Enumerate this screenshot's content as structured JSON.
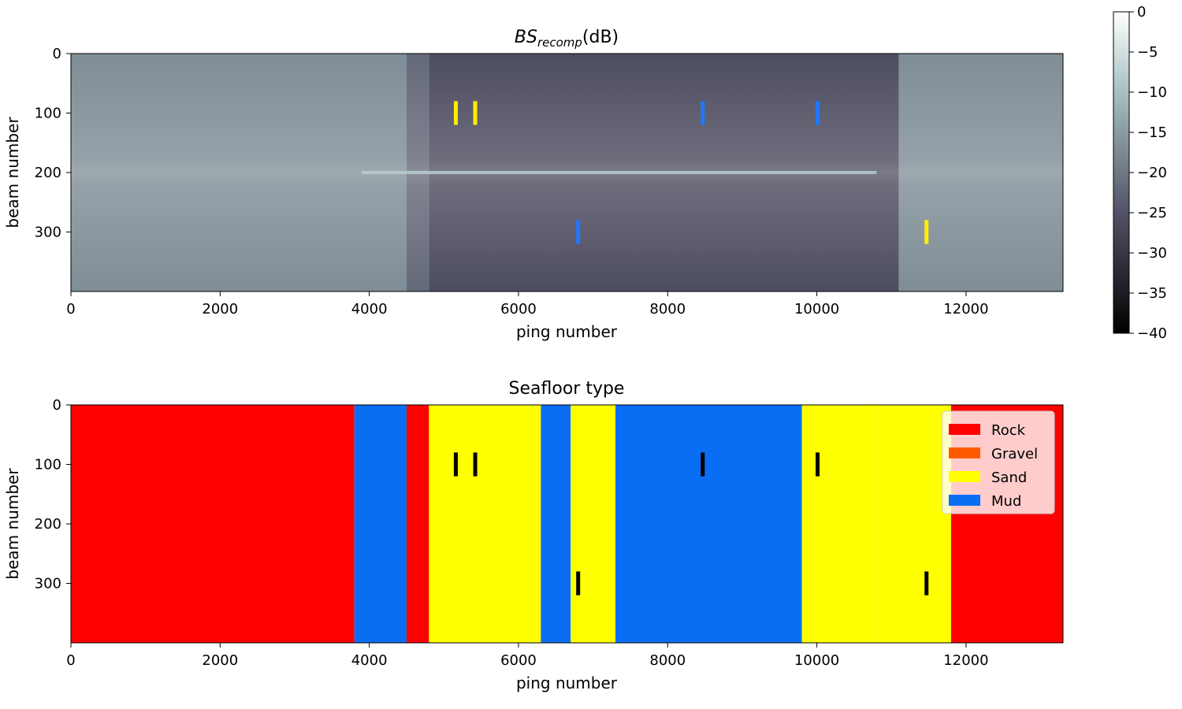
{
  "chart_data": [
    {
      "type": "heatmap",
      "title": "BS",
      "title_subscript": "recomp",
      "title_suffix": "(dB)",
      "xlabel": "ping number",
      "ylabel": "beam number",
      "xlim": [
        0,
        13300
      ],
      "ylim": [
        400,
        0
      ],
      "xticks": [
        0,
        2000,
        4000,
        6000,
        8000,
        10000,
        12000
      ],
      "yticks": [
        0,
        100,
        200,
        300
      ],
      "colorbar": {
        "colormap": "bone",
        "range": [
          -40,
          0
        ],
        "ticks": [
          0,
          -5,
          -10,
          -15,
          -20,
          -25,
          -30,
          -35,
          -40
        ],
        "tick_labels": [
          "0",
          "−5",
          "−10",
          "−15",
          "−20",
          "−25",
          "−30",
          "−35",
          "−40"
        ]
      },
      "background_regions": [
        {
          "x": [
            0,
            4500
          ],
          "level": -17
        },
        {
          "x": [
            4500,
            4800
          ],
          "level": -22
        },
        {
          "x": [
            4800,
            11100
          ],
          "level": -26
        },
        {
          "x": [
            11100,
            13300
          ],
          "level": -17
        }
      ],
      "bright_nadir_line": {
        "beam": 200,
        "x": [
          3900,
          10800
        ],
        "level": -8
      },
      "markers": [
        {
          "x": 5160,
          "beam_range": [
            80,
            120
          ],
          "color": "#ffee00"
        },
        {
          "x": 5420,
          "beam_range": [
            80,
            120
          ],
          "color": "#ffee00"
        },
        {
          "x": 8470,
          "beam_range": [
            80,
            120
          ],
          "color": "#1f77ff"
        },
        {
          "x": 10010,
          "beam_range": [
            80,
            120
          ],
          "color": "#1f77ff"
        },
        {
          "x": 6800,
          "beam_range": [
            280,
            320
          ],
          "color": "#1f77ff"
        },
        {
          "x": 11470,
          "beam_range": [
            280,
            320
          ],
          "color": "#ffee00"
        }
      ]
    },
    {
      "type": "heatmap",
      "title": "Seafloor type",
      "xlabel": "ping number",
      "ylabel": "beam number",
      "xlim": [
        0,
        13300
      ],
      "ylim": [
        400,
        0
      ],
      "xticks": [
        0,
        2000,
        4000,
        6000,
        8000,
        10000,
        12000
      ],
      "yticks": [
        0,
        100,
        200,
        300
      ],
      "legend": {
        "position": "top-right",
        "entries": [
          {
            "label": "Rock",
            "color": "#ff0000"
          },
          {
            "label": "Gravel",
            "color": "#ff5a00"
          },
          {
            "label": "Sand",
            "color": "#ffff00"
          },
          {
            "label": "Mud",
            "color": "#0a6ef5"
          }
        ]
      },
      "class_regions": [
        {
          "class": "Rock",
          "x_range": [
            0,
            3800
          ]
        },
        {
          "class": "Mud",
          "x_range": [
            3800,
            4500
          ]
        },
        {
          "class": "Rock",
          "x_range": [
            4500,
            4800
          ]
        },
        {
          "class": "Sand",
          "x_range": [
            4800,
            6300
          ]
        },
        {
          "class": "Mud",
          "x_range": [
            6300,
            6700
          ]
        },
        {
          "class": "Sand",
          "x_range": [
            6700,
            7300
          ]
        },
        {
          "class": "Mud",
          "x_range": [
            7300,
            9800
          ]
        },
        {
          "class": "Sand",
          "x_range": [
            9800,
            10800
          ]
        },
        {
          "class": "Sand",
          "x_range": [
            10800,
            11800
          ]
        },
        {
          "class": "Rock",
          "x_range": [
            11800,
            13300
          ]
        }
      ],
      "markers": [
        {
          "x": 5160,
          "beam_range": [
            80,
            120
          ],
          "color": "#000000"
        },
        {
          "x": 5420,
          "beam_range": [
            80,
            120
          ],
          "color": "#000000"
        },
        {
          "x": 8470,
          "beam_range": [
            80,
            120
          ],
          "color": "#000000"
        },
        {
          "x": 10010,
          "beam_range": [
            80,
            120
          ],
          "color": "#000000"
        },
        {
          "x": 6800,
          "beam_range": [
            280,
            320
          ],
          "color": "#000000"
        },
        {
          "x": 11470,
          "beam_range": [
            280,
            320
          ],
          "color": "#000000"
        }
      ]
    }
  ]
}
